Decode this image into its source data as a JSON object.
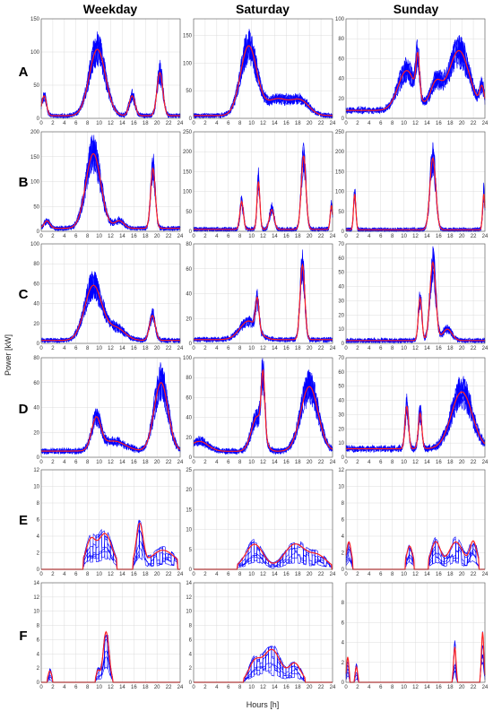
{
  "figure": {
    "columns": [
      "Weekday",
      "Saturday",
      "Sunday"
    ],
    "rows": [
      "A",
      "B",
      "C",
      "D",
      "E",
      "F"
    ],
    "xlabel": "Hours [h]",
    "ylabel": "Power [kW]"
  },
  "colors": {
    "mean": "#ff2020",
    "samples": "#0000ff",
    "grid": "#dcdcdc",
    "axis": "#555555"
  },
  "chart_data": {
    "type": "line",
    "x_ticks": [
      0,
      2,
      4,
      6,
      8,
      10,
      12,
      14,
      16,
      18,
      20,
      22,
      24
    ],
    "xlim": [
      0,
      24
    ],
    "grid": true,
    "series_names": [
      "samples",
      "mean"
    ],
    "panels": [
      {
        "row": "A",
        "col": "Weekday",
        "ylim": [
          0,
          150
        ],
        "yticks": [
          0,
          50,
          100,
          150
        ],
        "peaks": [
          [
            0.5,
            0.4,
            30
          ],
          [
            9.7,
            1.4,
            100
          ],
          [
            15.7,
            0.5,
            30
          ],
          [
            20.5,
            0.5,
            65
          ]
        ],
        "baseline": 4
      },
      {
        "row": "A",
        "col": "Saturday",
        "ylim": [
          0,
          180
        ],
        "yticks": [
          0,
          50,
          100,
          150
        ],
        "peaks": [
          [
            9.5,
            1.4,
            125
          ],
          [
            14.5,
            2.0,
            30
          ],
          [
            18.5,
            1.5,
            25
          ]
        ],
        "baseline": 5
      },
      {
        "row": "A",
        "col": "Sunday",
        "ylim": [
          0,
          100
        ],
        "yticks": [
          0,
          20,
          40,
          60,
          80,
          100
        ],
        "peaks": [
          [
            10.5,
            1.5,
            40
          ],
          [
            12.4,
            0.3,
            40
          ],
          [
            15.5,
            1.0,
            25
          ],
          [
            19.5,
            1.8,
            60
          ],
          [
            23.5,
            0.4,
            20
          ]
        ],
        "baseline": 8
      },
      {
        "row": "B",
        "col": "Weekday",
        "ylim": [
          0,
          200
        ],
        "yticks": [
          0,
          50,
          100,
          150,
          200
        ],
        "peaks": [
          [
            1.0,
            0.5,
            15
          ],
          [
            9.0,
            1.3,
            150
          ],
          [
            13.5,
            0.8,
            15
          ],
          [
            19.3,
            0.4,
            120
          ]
        ],
        "baseline": 6
      },
      {
        "row": "B",
        "col": "Saturday",
        "ylim": [
          0,
          250
        ],
        "yticks": [
          0,
          50,
          100,
          150,
          200,
          250
        ],
        "peaks": [
          [
            8.3,
            0.3,
            70
          ],
          [
            11.2,
            0.25,
            120
          ],
          [
            13.5,
            0.4,
            50
          ],
          [
            19.0,
            0.4,
            185
          ],
          [
            23.8,
            0.2,
            60
          ]
        ],
        "baseline": 5
      },
      {
        "row": "B",
        "col": "Sunday",
        "ylim": [
          0,
          250
        ],
        "yticks": [
          0,
          50,
          100,
          150,
          200,
          250
        ],
        "peaks": [
          [
            1.5,
            0.2,
            90
          ],
          [
            15.0,
            0.5,
            180
          ],
          [
            23.8,
            0.2,
            90
          ]
        ],
        "baseline": 4
      },
      {
        "row": "C",
        "col": "Weekday",
        "ylim": [
          0,
          100
        ],
        "yticks": [
          0,
          20,
          40,
          60,
          80,
          100
        ],
        "peaks": [
          [
            9.0,
            1.5,
            55
          ],
          [
            13.0,
            1.5,
            12
          ],
          [
            19.2,
            0.5,
            25
          ]
        ],
        "baseline": 3
      },
      {
        "row": "C",
        "col": "Saturday",
        "ylim": [
          0,
          80
        ],
        "yticks": [
          0,
          20,
          40,
          60,
          80
        ],
        "peaks": [
          [
            9.5,
            1.5,
            15
          ],
          [
            11.0,
            0.3,
            25
          ],
          [
            18.8,
            0.4,
            60
          ]
        ],
        "baseline": 3
      },
      {
        "row": "C",
        "col": "Sunday",
        "ylim": [
          0,
          70
        ],
        "yticks": [
          0,
          10,
          20,
          30,
          40,
          50,
          60,
          70
        ],
        "peaks": [
          [
            12.8,
            0.3,
            30
          ],
          [
            15.0,
            0.5,
            55
          ],
          [
            17.5,
            0.8,
            8
          ]
        ],
        "baseline": 2
      },
      {
        "row": "D",
        "col": "Weekday",
        "ylim": [
          0,
          80
        ],
        "yticks": [
          0,
          20,
          40,
          60,
          80
        ],
        "peaks": [
          [
            9.5,
            0.8,
            25
          ],
          [
            12.5,
            2.0,
            8
          ],
          [
            20.7,
            1.2,
            55
          ]
        ],
        "baseline": 5
      },
      {
        "row": "D",
        "col": "Saturday",
        "ylim": [
          0,
          100
        ],
        "yticks": [
          0,
          20,
          40,
          60,
          80,
          100
        ],
        "peaks": [
          [
            1.0,
            1.5,
            10
          ],
          [
            11.0,
            1.0,
            35
          ],
          [
            12.0,
            0.3,
            60
          ],
          [
            20.0,
            1.5,
            65
          ]
        ],
        "baseline": 6
      },
      {
        "row": "D",
        "col": "Sunday",
        "ylim": [
          0,
          70
        ],
        "yticks": [
          0,
          10,
          20,
          30,
          40,
          50,
          60,
          70
        ],
        "peaks": [
          [
            10.5,
            0.3,
            30
          ],
          [
            12.8,
            0.3,
            25
          ],
          [
            20.0,
            1.8,
            40
          ]
        ],
        "baseline": 6
      },
      {
        "row": "E",
        "col": "Weekday",
        "ylim": [
          0,
          12
        ],
        "yticks": [
          0,
          2,
          4,
          6,
          8,
          10,
          12
        ],
        "peaks": [
          [
            8.5,
            0.8,
            3
          ],
          [
            11.0,
            1.2,
            4
          ],
          [
            17.0,
            0.6,
            5
          ],
          [
            21.0,
            2.0,
            2
          ]
        ],
        "baseline": 0.3
      },
      {
        "row": "E",
        "col": "Saturday",
        "ylim": [
          0,
          25
        ],
        "yticks": [
          0,
          5,
          10,
          15,
          20,
          25
        ],
        "peaks": [
          [
            10.5,
            1.5,
            6
          ],
          [
            17.5,
            1.8,
            6
          ],
          [
            21.5,
            1.5,
            3
          ]
        ],
        "baseline": 0.3
      },
      {
        "row": "E",
        "col": "Sunday",
        "ylim": [
          0,
          12
        ],
        "yticks": [
          0,
          2,
          4,
          6,
          8,
          10,
          12
        ],
        "peaks": [
          [
            0.5,
            0.4,
            3
          ],
          [
            11.0,
            0.5,
            2.5
          ],
          [
            15.5,
            0.8,
            3
          ],
          [
            19.0,
            1.2,
            3
          ],
          [
            22.0,
            0.6,
            3
          ]
        ],
        "baseline": 0.3
      },
      {
        "row": "F",
        "col": "Weekday",
        "ylim": [
          0,
          14
        ],
        "yticks": [
          0,
          2,
          4,
          6,
          8,
          10,
          12,
          14
        ],
        "peaks": [
          [
            1.5,
            0.3,
            1.5
          ],
          [
            9.8,
            0.3,
            1.5
          ],
          [
            11.2,
            0.5,
            7
          ]
        ],
        "baseline": 0.1
      },
      {
        "row": "F",
        "col": "Saturday",
        "ylim": [
          0,
          14
        ],
        "yticks": [
          0,
          2,
          4,
          6,
          8,
          10,
          12,
          14
        ],
        "peaks": [
          [
            10.5,
            1.0,
            2.5
          ],
          [
            13.5,
            1.5,
            4.5
          ],
          [
            17.5,
            1.0,
            2.5
          ]
        ],
        "baseline": 0.1
      },
      {
        "row": "F",
        "col": "Sunday",
        "ylim": [
          0,
          10
        ],
        "yticks": [
          0,
          2,
          4,
          6,
          8
        ],
        "peaks": [
          [
            0.3,
            0.2,
            2.5
          ],
          [
            1.8,
            0.2,
            1.5
          ],
          [
            18.8,
            0.2,
            3.5
          ],
          [
            23.6,
            0.2,
            5
          ]
        ],
        "baseline": 0.05
      }
    ]
  }
}
